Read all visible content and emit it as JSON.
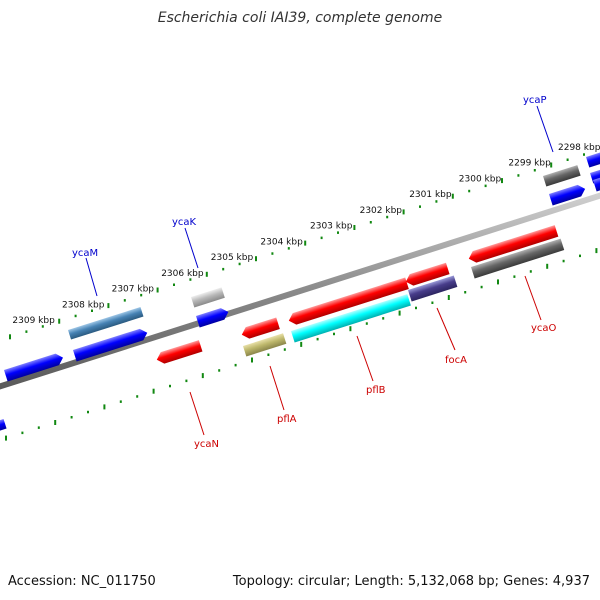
{
  "title": "Escherichia coli IAI39, complete genome",
  "footer": {
    "accession": "Accession: NC_011750",
    "info": "Topology: circular; Length: 5,132,068 bp; Genes: 4,937"
  },
  "colors": {
    "backbone": "#8a8a8a",
    "tick_dots": "#118811",
    "label_top": "#0000cc",
    "label_bottom": "#cc0000"
  },
  "scale": {
    "unit_suffix": " kbp",
    "ticks": [
      {
        "kbp": 2298,
        "label": "2298 kbp"
      },
      {
        "kbp": 2299,
        "label": "2299 kbp"
      },
      {
        "kbp": 2300,
        "label": "2300 kbp"
      },
      {
        "kbp": 2301,
        "label": "2301 kbp"
      },
      {
        "kbp": 2302,
        "label": "2302 kbp"
      },
      {
        "kbp": 2303,
        "label": "2303 kbp"
      },
      {
        "kbp": 2304,
        "label": "2304 kbp"
      },
      {
        "kbp": 2305,
        "label": "2305 kbp"
      },
      {
        "kbp": 2306,
        "label": "2306 kbp"
      },
      {
        "kbp": 2307,
        "label": "2307 kbp"
      },
      {
        "kbp": 2308,
        "label": "2308 kbp"
      },
      {
        "kbp": 2309,
        "label": "2309 kbp"
      }
    ]
  },
  "gene_labels": [
    {
      "name": "ycaP",
      "color": "#0000cc"
    },
    {
      "name": "ycaK",
      "color": "#0000cc"
    },
    {
      "name": "ycaM",
      "color": "#0000cc"
    },
    {
      "name": "ycaO",
      "color": "#cc0000"
    },
    {
      "name": "focA",
      "color": "#cc0000"
    },
    {
      "name": "pflB",
      "color": "#cc0000"
    },
    {
      "name": "pflA",
      "color": "#cc0000"
    },
    {
      "name": "ycaN",
      "color": "#cc0000"
    }
  ]
}
